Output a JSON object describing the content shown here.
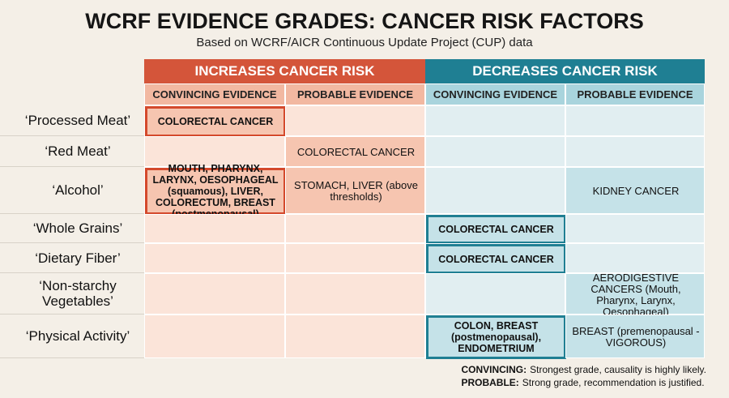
{
  "header": {
    "title": "WCRF EVIDENCE GRADES: CANCER RISK FACTORS",
    "subtitle": "Based on WCRF/AICR Continuous Update Project (CUP) data"
  },
  "table": {
    "groups": [
      {
        "label": "INCREASES CANCER RISK",
        "color": "#d4553a"
      },
      {
        "label": "DECREASES CANCER RISK",
        "color": "#1f7f93"
      }
    ],
    "columns": [
      "CONVINCING EVIDENCE",
      "PROBABLE EVIDENCE",
      "CONVINCING EVIDENCE",
      "PROBABLE EVIDENCE"
    ],
    "rows": [
      {
        "label": "‘Processed Meat’",
        "cells": [
          {
            "text": "COLORECTAL CANCER",
            "boxed": true
          },
          null,
          null,
          null
        ]
      },
      {
        "label": "‘Red Meat’",
        "cells": [
          null,
          {
            "text": "COLORECTAL CANCER"
          },
          null,
          null
        ]
      },
      {
        "label": "‘Alcohol’",
        "cells": [
          {
            "text": "MOUTH, PHARYNX, LARYNX, OESOPHAGEAL (squamous), LIVER, COLORECTUM, BREAST (postmenopausal)",
            "boxed": true
          },
          {
            "text": "STOMACH, LIVER (above thresholds)"
          },
          null,
          {
            "text": "KIDNEY CANCER"
          }
        ]
      },
      {
        "label": "‘Whole Grains’",
        "cells": [
          null,
          null,
          {
            "text": "COLORECTAL CANCER",
            "boxed": true
          },
          null
        ]
      },
      {
        "label": "‘Dietary Fiber’",
        "cells": [
          null,
          null,
          {
            "text": "COLORECTAL CANCER",
            "boxed": true
          },
          null
        ]
      },
      {
        "label": "‘Non-starchy Vegetables’",
        "cells": [
          null,
          null,
          null,
          {
            "text": "AERODIGESTIVE CANCERS (Mouth, Pharynx, Larynx, Oesophageal)"
          }
        ]
      },
      {
        "label": "‘Physical Activity’",
        "cells": [
          null,
          null,
          {
            "text": "COLON, BREAST (postmenopausal), ENDOMETRIUM",
            "boxed": true
          },
          {
            "text": "BREAST (premenopausal - VIGOROUS)"
          }
        ]
      }
    ]
  },
  "legend": [
    {
      "term": "CONVINCING:",
      "description": "Strongest grade, causality is highly likely."
    },
    {
      "term": "PROBABLE:",
      "description": "Strong grade, recommendation is justified."
    }
  ]
}
